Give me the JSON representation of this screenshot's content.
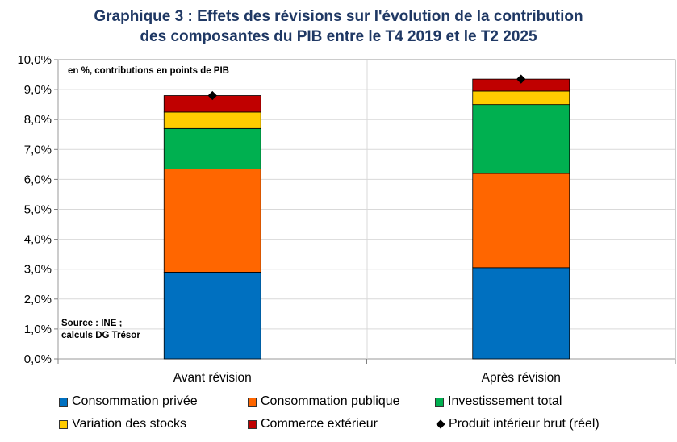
{
  "chart_data": {
    "type": "bar",
    "stacked": true,
    "title_line1": "Graphique 3 : Effets des révisions sur l'évolution de la contribution",
    "title_line2": "des composantes du PIB entre le T4 2019 et le T2 2025",
    "unit_note": "en %, contributions en points de PIB",
    "source_line1": "Source : INE ;",
    "source_line2": "calculs DG Trésor",
    "categories": [
      "Avant révision",
      "Après révision"
    ],
    "ylim": [
      0,
      10
    ],
    "yticks": [
      "0,0%",
      "1,0%",
      "2,0%",
      "3,0%",
      "4,0%",
      "5,0%",
      "6,0%",
      "7,0%",
      "8,0%",
      "9,0%",
      "10,0%"
    ],
    "series": [
      {
        "name": "Consommation privée",
        "color": "#0070c0",
        "values": [
          2.9,
          3.05
        ]
      },
      {
        "name": "Consommation publique",
        "color": "#ff6600",
        "values": [
          3.45,
          3.15
        ]
      },
      {
        "name": "Investissement total",
        "color": "#00b050",
        "values": [
          1.35,
          2.3
        ]
      },
      {
        "name": "Variation des stocks",
        "color": "#ffcc00",
        "values": [
          0.55,
          0.45
        ]
      },
      {
        "name": "Commerce extérieur",
        "color": "#c00000",
        "values": [
          0.55,
          0.4
        ]
      }
    ],
    "line_series": {
      "name": "Produit intérieur brut (réel)",
      "marker": "diamond",
      "color": "#000000",
      "values": [
        8.8,
        9.35
      ]
    }
  }
}
